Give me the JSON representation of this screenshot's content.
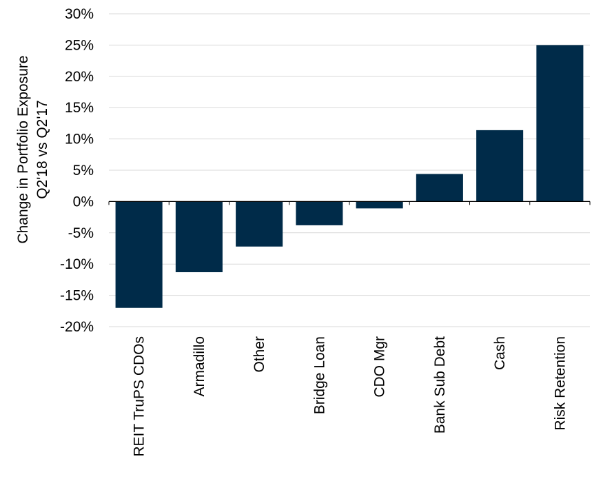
{
  "chart_data": {
    "type": "bar",
    "categories": [
      "REIT TruPS  CDOs",
      "Armadillo",
      "Other",
      "Bridge Loan",
      "CDO Mgr",
      "Bank Sub Debt",
      "Cash",
      "Risk Retention"
    ],
    "values": [
      -17.0,
      -11.3,
      -7.2,
      -3.8,
      -1.1,
      4.4,
      11.4,
      25.0
    ],
    "title": "",
    "xlabel": "",
    "ylabel_line1": "Change in Portfolio Exposure",
    "ylabel_line2": "Q2'18 vs Q2'17",
    "ylim": [
      -20,
      30
    ],
    "yticks": [
      30,
      25,
      20,
      15,
      10,
      5,
      0,
      -5,
      -10,
      -15,
      -20
    ],
    "ytick_labels": [
      "30%",
      "25%",
      "20%",
      "15%",
      "10%",
      "5%",
      "0%",
      "-5%",
      "-10%",
      "-15%",
      "-20%"
    ],
    "grid": true,
    "bar_color": "#002b49",
    "legend": "none"
  }
}
